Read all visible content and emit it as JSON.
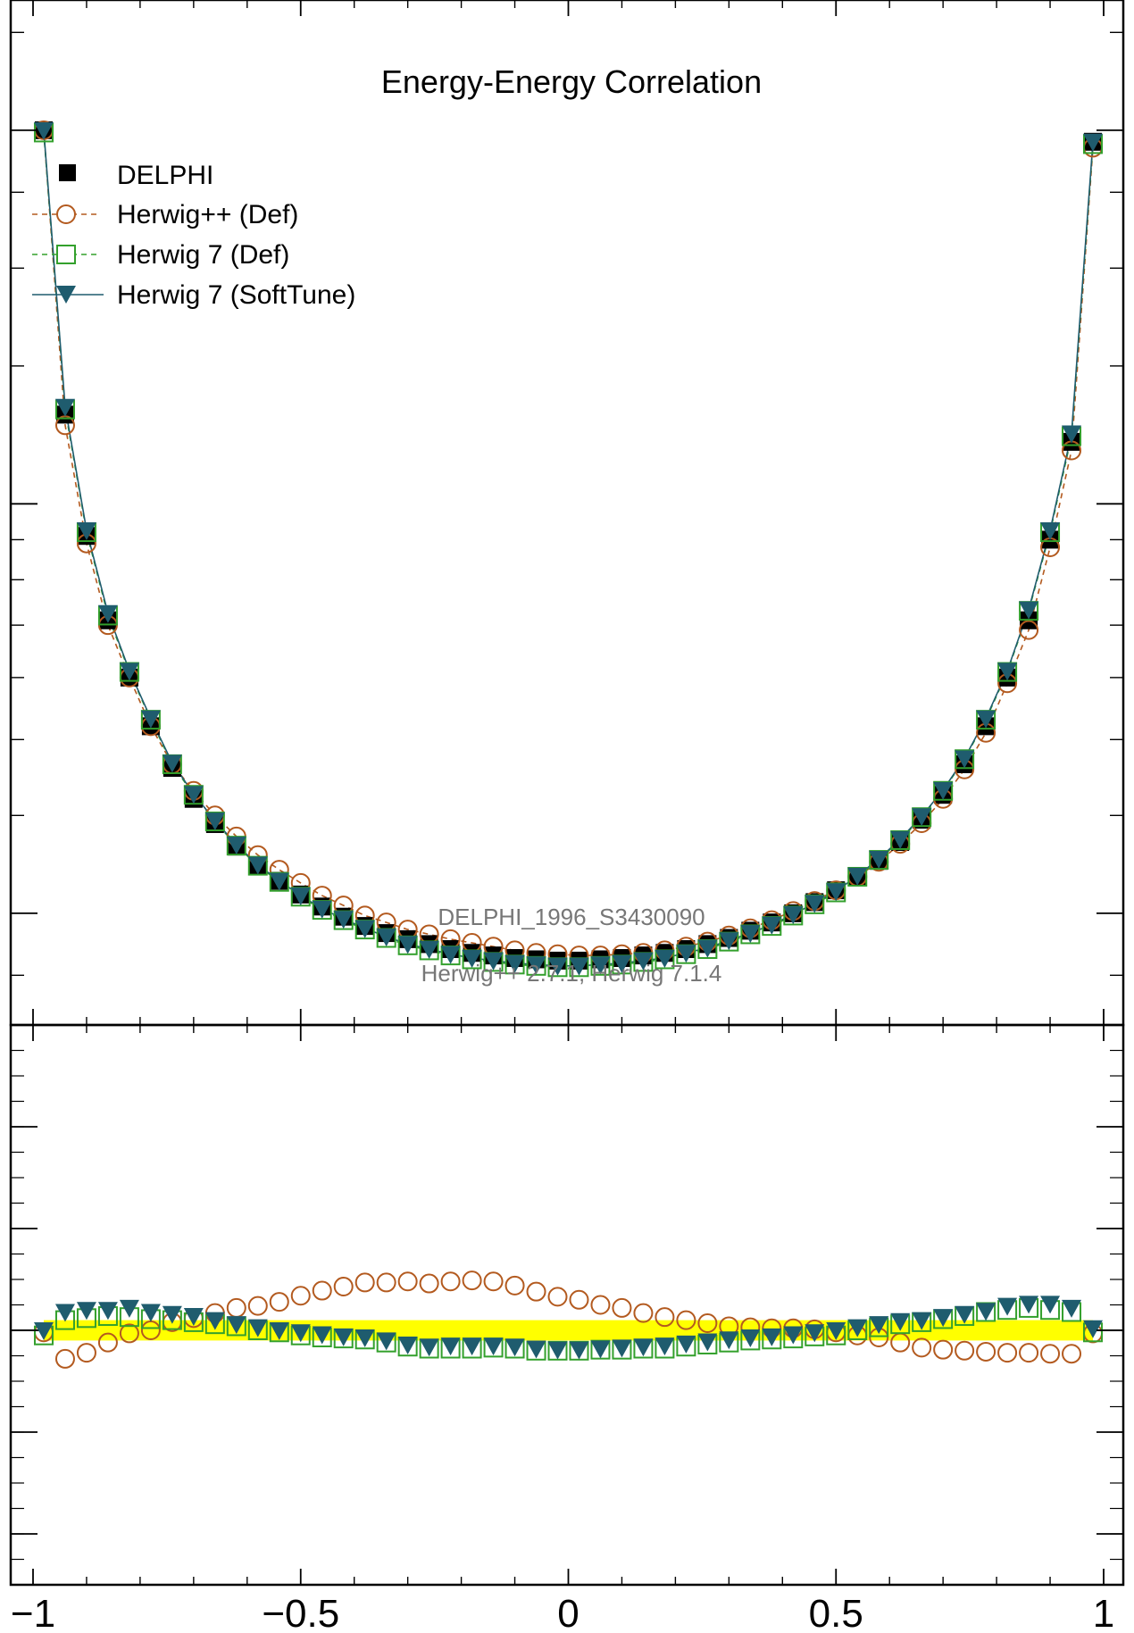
{
  "chart_data": [
    {
      "type": "line",
      "panel": "main",
      "title": "Energy-Energy Correlation",
      "annotations": [
        "DELPHI_1996_S3430090",
        "Herwig++ 2.7.1, Herwig 7.1.4"
      ],
      "xlim": [
        -1,
        1
      ],
      "log_y": true,
      "grid": false,
      "legend": {
        "position": "top-left",
        "entries": [
          "DELPHI",
          "Herwig++ (Def)",
          "Herwig 7 (Def)",
          "Herwig 7 (SoftTune)"
        ]
      },
      "series": [
        {
          "name": "DELPHI",
          "marker": "filled-square",
          "color": "#000000",
          "x": [
            -0.98,
            -0.94,
            -0.9,
            -0.86,
            -0.82,
            -0.78,
            -0.74,
            -0.7,
            -0.66,
            -0.62,
            -0.58,
            -0.54,
            -0.5,
            -0.46,
            -0.42,
            -0.38,
            -0.34,
            -0.3,
            -0.26,
            -0.22,
            -0.18,
            -0.14,
            -0.1,
            -0.06,
            -0.02,
            0.02,
            0.06,
            0.1,
            0.14,
            0.18,
            0.22,
            0.26,
            0.3,
            0.34,
            0.38,
            0.42,
            0.46,
            0.5,
            0.54,
            0.58,
            0.62,
            0.66,
            0.7,
            0.74,
            0.78,
            0.82,
            0.86,
            0.9,
            0.94,
            0.98
          ],
          "y": [
            3.0,
            1.3,
            0.91,
            0.71,
            0.6,
            0.52,
            0.46,
            0.42,
            0.39,
            0.365,
            0.345,
            0.33,
            0.317,
            0.306,
            0.297,
            0.289,
            0.283,
            0.278,
            0.274,
            0.27,
            0.267,
            0.265,
            0.263,
            0.262,
            0.261,
            0.261,
            0.262,
            0.263,
            0.265,
            0.267,
            0.27,
            0.274,
            0.279,
            0.285,
            0.292,
            0.3,
            0.31,
            0.321,
            0.334,
            0.35,
            0.37,
            0.395,
            0.425,
            0.465,
            0.52,
            0.6,
            0.71,
            0.9,
            1.2,
            2.9
          ]
        },
        {
          "name": "Herwig++ (Def)",
          "marker": "open-circle",
          "color": "#b35a1f",
          "dashed": true,
          "x": [
            -0.98,
            -0.94,
            -0.9,
            -0.86,
            -0.82,
            -0.78,
            -0.74,
            -0.7,
            -0.66,
            -0.62,
            -0.58,
            -0.54,
            -0.5,
            -0.46,
            -0.42,
            -0.38,
            -0.34,
            -0.3,
            -0.26,
            -0.22,
            -0.18,
            -0.14,
            -0.1,
            -0.06,
            -0.02,
            0.02,
            0.06,
            0.1,
            0.14,
            0.18,
            0.22,
            0.26,
            0.3,
            0.34,
            0.38,
            0.42,
            0.46,
            0.5,
            0.54,
            0.58,
            0.62,
            0.66,
            0.7,
            0.74,
            0.78,
            0.82,
            0.86,
            0.9,
            0.94,
            0.98
          ],
          "y": [
            3.0,
            1.26,
            0.89,
            0.7,
            0.6,
            0.52,
            0.465,
            0.43,
            0.4,
            0.376,
            0.356,
            0.341,
            0.328,
            0.316,
            0.307,
            0.298,
            0.292,
            0.286,
            0.282,
            0.278,
            0.275,
            0.272,
            0.269,
            0.267,
            0.266,
            0.265,
            0.265,
            0.266,
            0.267,
            0.269,
            0.272,
            0.276,
            0.281,
            0.287,
            0.294,
            0.302,
            0.311,
            0.321,
            0.334,
            0.349,
            0.368,
            0.391,
            0.42,
            0.458,
            0.51,
            0.59,
            0.69,
            0.88,
            1.17,
            2.85
          ]
        },
        {
          "name": "Herwig 7 (Def)",
          "marker": "open-square",
          "color": "#33a02c",
          "dashed": true,
          "x": [
            -0.98,
            -0.94,
            -0.9,
            -0.86,
            -0.82,
            -0.78,
            -0.74,
            -0.7,
            -0.66,
            -0.62,
            -0.58,
            -0.54,
            -0.5,
            -0.46,
            -0.42,
            -0.38,
            -0.34,
            -0.3,
            -0.26,
            -0.22,
            -0.18,
            -0.14,
            -0.1,
            -0.06,
            -0.02,
            0.02,
            0.06,
            0.1,
            0.14,
            0.18,
            0.22,
            0.26,
            0.3,
            0.34,
            0.38,
            0.42,
            0.46,
            0.5,
            0.54,
            0.58,
            0.62,
            0.66,
            0.7,
            0.74,
            0.78,
            0.82,
            0.86,
            0.9,
            0.94,
            0.98
          ],
          "y": [
            2.98,
            1.32,
            0.92,
            0.72,
            0.61,
            0.53,
            0.465,
            0.425,
            0.393,
            0.366,
            0.345,
            0.329,
            0.315,
            0.303,
            0.294,
            0.286,
            0.279,
            0.273,
            0.269,
            0.265,
            0.262,
            0.26,
            0.258,
            0.257,
            0.256,
            0.256,
            0.257,
            0.258,
            0.26,
            0.262,
            0.266,
            0.27,
            0.276,
            0.282,
            0.289,
            0.298,
            0.308,
            0.319,
            0.334,
            0.351,
            0.372,
            0.398,
            0.43,
            0.472,
            0.53,
            0.61,
            0.73,
            0.92,
            1.22,
            2.88
          ]
        },
        {
          "name": "Herwig 7 (SoftTune)",
          "marker": "filled-triangle-down",
          "color": "#1f5c6e",
          "dashed": false,
          "x": [
            -0.98,
            -0.94,
            -0.9,
            -0.86,
            -0.82,
            -0.78,
            -0.74,
            -0.7,
            -0.66,
            -0.62,
            -0.58,
            -0.54,
            -0.5,
            -0.46,
            -0.42,
            -0.38,
            -0.34,
            -0.3,
            -0.26,
            -0.22,
            -0.18,
            -0.14,
            -0.1,
            -0.06,
            -0.02,
            0.02,
            0.06,
            0.1,
            0.14,
            0.18,
            0.22,
            0.26,
            0.3,
            0.34,
            0.38,
            0.42,
            0.46,
            0.5,
            0.54,
            0.58,
            0.62,
            0.66,
            0.7,
            0.74,
            0.78,
            0.82,
            0.86,
            0.9,
            0.94,
            0.98
          ],
          "y": [
            3.0,
            1.33,
            0.925,
            0.725,
            0.612,
            0.532,
            0.467,
            0.426,
            0.394,
            0.367,
            0.346,
            0.33,
            0.316,
            0.304,
            0.295,
            0.287,
            0.28,
            0.274,
            0.27,
            0.266,
            0.263,
            0.261,
            0.259,
            0.258,
            0.257,
            0.257,
            0.258,
            0.259,
            0.261,
            0.263,
            0.267,
            0.271,
            0.277,
            0.283,
            0.29,
            0.299,
            0.309,
            0.32,
            0.335,
            0.352,
            0.373,
            0.399,
            0.431,
            0.473,
            0.532,
            0.612,
            0.733,
            0.925,
            1.23,
            2.9
          ]
        }
      ]
    },
    {
      "type": "line",
      "panel": "ratio",
      "xlim": [
        -1,
        1
      ],
      "ylim": [
        0.75,
        1.3
      ],
      "xticks": [
        "−1",
        "−0.5",
        "0",
        "0.5",
        "1"
      ],
      "grid": false,
      "band": {
        "color": "#ffff00",
        "y": [
          0.99,
          1.01
        ]
      },
      "series": [
        {
          "name": "Herwig++ (Def)",
          "marker": "open-circle",
          "color": "#b35a1f",
          "x": [
            -0.98,
            -0.94,
            -0.9,
            -0.86,
            -0.82,
            -0.78,
            -0.74,
            -0.7,
            -0.66,
            -0.62,
            -0.58,
            -0.54,
            -0.5,
            -0.46,
            -0.42,
            -0.38,
            -0.34,
            -0.3,
            -0.26,
            -0.22,
            -0.18,
            -0.14,
            -0.1,
            -0.06,
            -0.02,
            0.02,
            0.06,
            0.1,
            0.14,
            0.18,
            0.22,
            0.26,
            0.3,
            0.34,
            0.38,
            0.42,
            0.46,
            0.5,
            0.54,
            0.58,
            0.62,
            0.66,
            0.7,
            0.74,
            0.78,
            0.82,
            0.86,
            0.9,
            0.94,
            0.98
          ],
          "y": [
            0.998,
            0.972,
            0.978,
            0.988,
            0.997,
            1.0,
            1.008,
            1.012,
            1.017,
            1.022,
            1.024,
            1.028,
            1.034,
            1.039,
            1.043,
            1.047,
            1.047,
            1.048,
            1.046,
            1.048,
            1.049,
            1.048,
            1.044,
            1.038,
            1.033,
            1.03,
            1.025,
            1.022,
            1.017,
            1.013,
            1.01,
            1.007,
            1.004,
            1.003,
            1.002,
            1.002,
            1.001,
            0.998,
            0.995,
            0.993,
            0.988,
            0.983,
            0.981,
            0.98,
            0.979,
            0.978,
            0.978,
            0.977,
            0.977,
            0.997
          ]
        },
        {
          "name": "Herwig 7 (Def)",
          "marker": "open-square",
          "color": "#33a02c",
          "x": [
            -0.98,
            -0.94,
            -0.9,
            -0.86,
            -0.82,
            -0.78,
            -0.74,
            -0.7,
            -0.66,
            -0.62,
            -0.58,
            -0.54,
            -0.5,
            -0.46,
            -0.42,
            -0.38,
            -0.34,
            -0.3,
            -0.26,
            -0.22,
            -0.18,
            -0.14,
            -0.1,
            -0.06,
            -0.02,
            0.02,
            0.06,
            0.1,
            0.14,
            0.18,
            0.22,
            0.26,
            0.3,
            0.34,
            0.38,
            0.42,
            0.46,
            0.5,
            0.54,
            0.58,
            0.62,
            0.66,
            0.7,
            0.74,
            0.78,
            0.82,
            0.86,
            0.9,
            0.94,
            0.98
          ],
          "y": [
            0.995,
            1.01,
            1.012,
            1.014,
            1.013,
            1.011,
            1.01,
            1.008,
            1.006,
            1.004,
            1.0,
            0.998,
            0.995,
            0.993,
            0.992,
            0.991,
            0.988,
            0.984,
            0.982,
            0.982,
            0.982,
            0.983,
            0.982,
            0.98,
            0.98,
            0.98,
            0.981,
            0.981,
            0.982,
            0.982,
            0.984,
            0.986,
            0.988,
            0.99,
            0.991,
            0.992,
            0.994,
            0.995,
            1.0,
            1.003,
            1.006,
            1.008,
            1.011,
            1.014,
            1.018,
            1.02,
            1.022,
            1.02,
            1.018,
            0.998
          ]
        },
        {
          "name": "Herwig 7 (SoftTune)",
          "marker": "filled-triangle-down",
          "color": "#1f5c6e",
          "x": [
            -0.98,
            -0.94,
            -0.9,
            -0.86,
            -0.82,
            -0.78,
            -0.74,
            -0.7,
            -0.66,
            -0.62,
            -0.58,
            -0.54,
            -0.5,
            -0.46,
            -0.42,
            -0.38,
            -0.34,
            -0.3,
            -0.26,
            -0.22,
            -0.18,
            -0.14,
            -0.1,
            -0.06,
            -0.02,
            0.02,
            0.06,
            0.1,
            0.14,
            0.18,
            0.22,
            0.26,
            0.3,
            0.34,
            0.38,
            0.42,
            0.46,
            0.5,
            0.54,
            0.58,
            0.62,
            0.66,
            0.7,
            0.74,
            0.78,
            0.82,
            0.86,
            0.9,
            0.94,
            0.98
          ],
          "y": [
            1.0,
            1.018,
            1.02,
            1.02,
            1.022,
            1.018,
            1.016,
            1.014,
            1.01,
            1.006,
            1.003,
            1.0,
            0.998,
            0.996,
            0.994,
            0.993,
            0.99,
            0.986,
            0.984,
            0.985,
            0.985,
            0.985,
            0.984,
            0.982,
            0.981,
            0.981,
            0.982,
            0.983,
            0.984,
            0.985,
            0.987,
            0.989,
            0.991,
            0.993,
            0.994,
            0.996,
            0.998,
            1.0,
            1.003,
            1.006,
            1.009,
            1.01,
            1.013,
            1.016,
            1.019,
            1.024,
            1.026,
            1.026,
            1.022,
            1.002
          ]
        }
      ]
    }
  ]
}
